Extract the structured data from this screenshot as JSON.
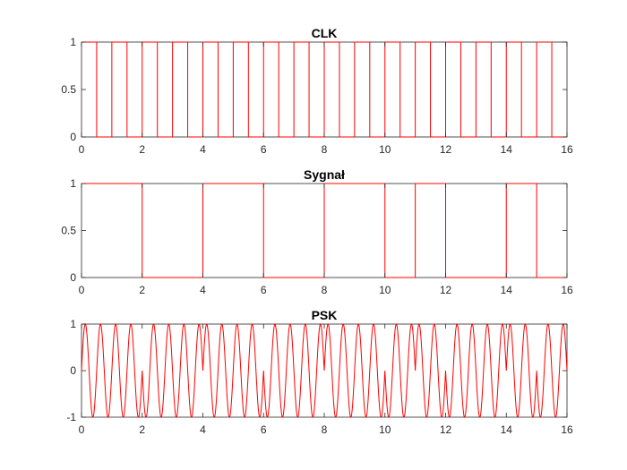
{
  "chart_data": [
    {
      "type": "line",
      "title": "CLK",
      "xlabel": "",
      "ylabel": "",
      "xlim": [
        0,
        16
      ],
      "ylim": [
        0,
        1
      ],
      "xticks": [
        "0",
        "2",
        "4",
        "6",
        "8",
        "10",
        "12",
        "14",
        "16"
      ],
      "yticks": [
        "0",
        "0.5",
        "1"
      ],
      "grid": false,
      "color": "#ff0000",
      "step": true,
      "series": [
        {
          "x": [
            0,
            0.5,
            1,
            1.5,
            2,
            2.5,
            3,
            3.5,
            4,
            4.5,
            5,
            5.5,
            6,
            6.5,
            7,
            7.5,
            8,
            8.5,
            9,
            9.5,
            10,
            10.5,
            11,
            11.5,
            12,
            12.5,
            13,
            13.5,
            14,
            14.5,
            15,
            15.5,
            16
          ],
          "values": [
            1,
            0,
            1,
            0,
            1,
            0,
            1,
            0,
            1,
            0,
            1,
            0,
            1,
            0,
            1,
            0,
            1,
            0,
            1,
            0,
            1,
            0,
            1,
            0,
            1,
            0,
            1,
            0,
            1,
            0,
            1,
            0,
            0
          ]
        }
      ]
    },
    {
      "type": "line",
      "title": "Sygnał",
      "xlabel": "",
      "ylabel": "",
      "xlim": [
        0,
        16
      ],
      "ylim": [
        0,
        1
      ],
      "xticks": [
        "0",
        "2",
        "4",
        "6",
        "8",
        "10",
        "12",
        "14",
        "16"
      ],
      "yticks": [
        "0",
        "0.5",
        "1"
      ],
      "grid": false,
      "color": "#ff0000",
      "step": true,
      "series": [
        {
          "x": [
            0,
            2,
            4,
            6,
            8,
            10,
            11,
            12,
            14,
            15,
            16
          ],
          "values": [
            1,
            0,
            1,
            0,
            1,
            0,
            1,
            0,
            1,
            0,
            0
          ]
        }
      ]
    },
    {
      "type": "line",
      "title": "PSK",
      "xlabel": "",
      "ylabel": "",
      "xlim": [
        0,
        16
      ],
      "ylim": [
        -1,
        1
      ],
      "xticks": [
        "0",
        "2",
        "4",
        "6",
        "8",
        "10",
        "12",
        "14",
        "16"
      ],
      "yticks": [
        "-1",
        "0",
        "1"
      ],
      "grid": false,
      "color": "#ff0000",
      "carrier_cycles_per_unit": 2,
      "carrier_function": "sin",
      "phase_bits": [
        1,
        1,
        0,
        0,
        1,
        1,
        0,
        0,
        1,
        1,
        0,
        1,
        0,
        0,
        1,
        0
      ],
      "phase_shift_deg": 180
    }
  ]
}
